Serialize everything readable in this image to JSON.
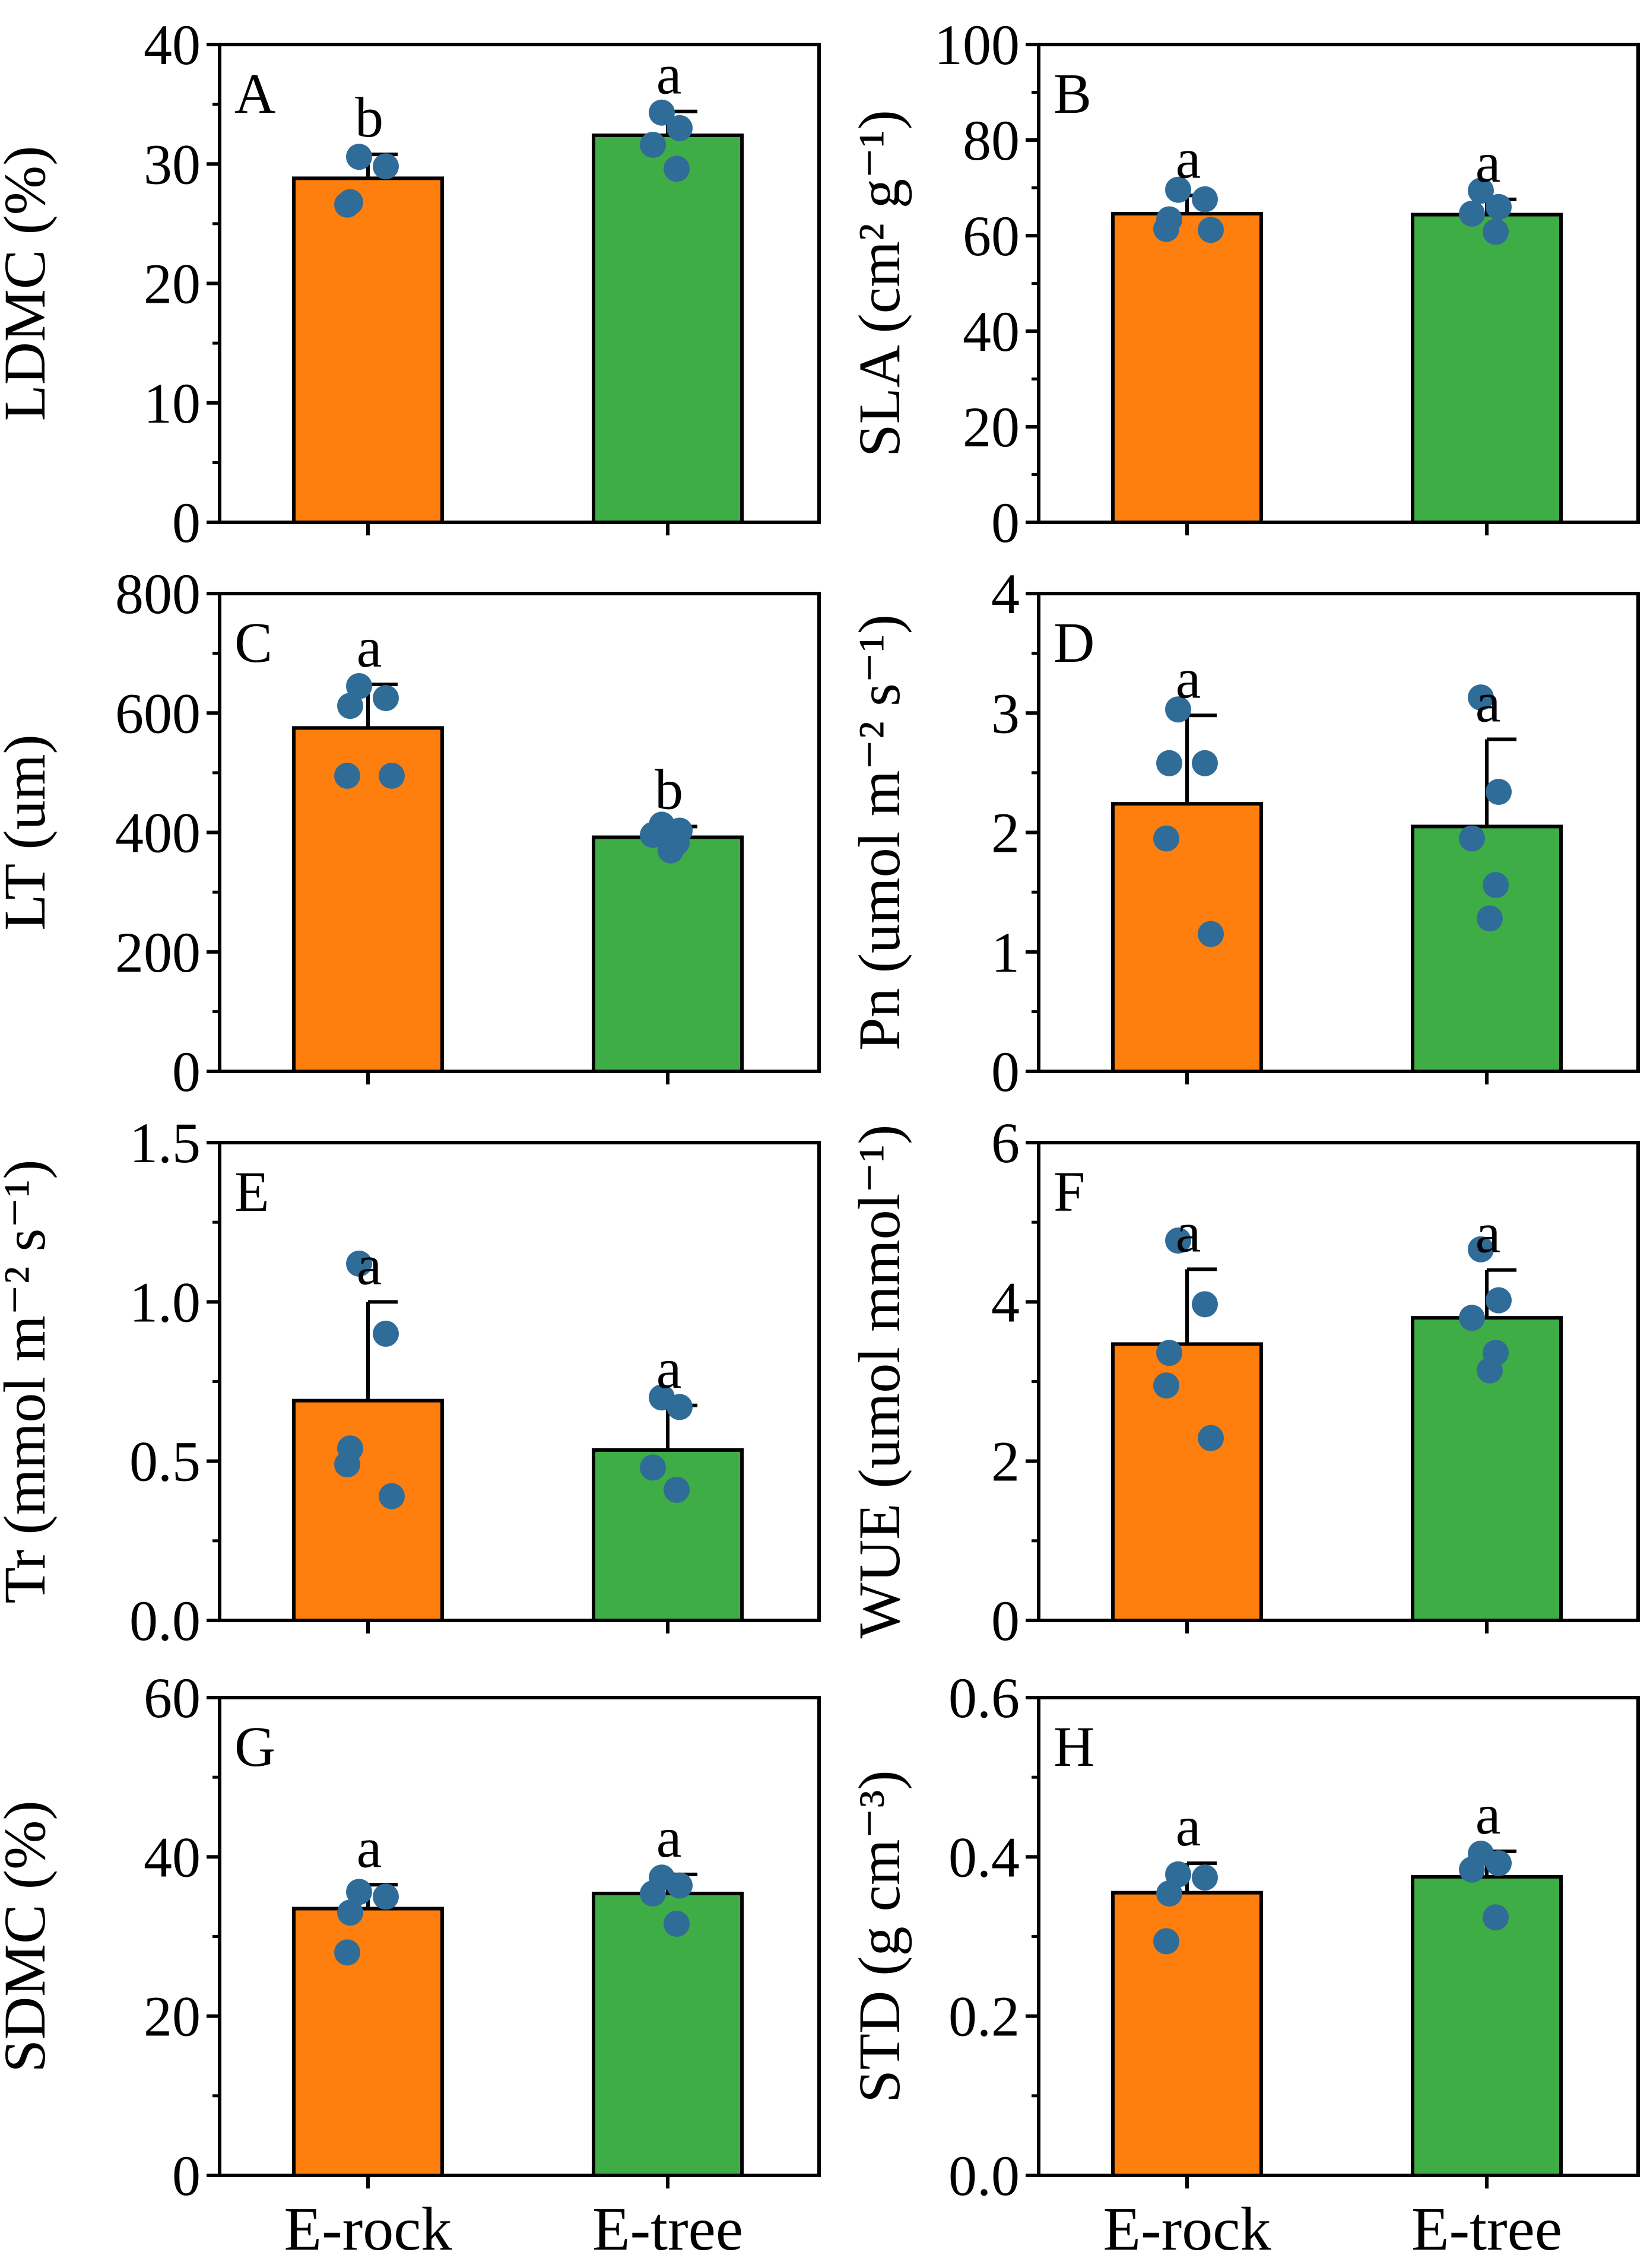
{
  "colors": {
    "E-rock": "#ff7f0e",
    "E-tree": "#3fad46",
    "points": "#2f6c98",
    "axis": "#000000"
  },
  "chart_data": [
    {
      "type": "bar",
      "panel": "A",
      "categories": [
        "E-rock",
        "E-tree"
      ],
      "ylabel": "LDMC (%)",
      "ylim": [
        0,
        40
      ],
      "yticks": [
        "0",
        "10",
        "20",
        "30",
        "40"
      ],
      "yticks_values": [
        0,
        10,
        20,
        30,
        40
      ],
      "minor_ticks": [
        5,
        15,
        25,
        35
      ],
      "values": [
        28.8,
        32.4
      ],
      "errors": [
        2.0,
        2.0
      ],
      "letters": [
        "b",
        "a"
      ],
      "points": [
        [
          30.6,
          29.8,
          26.8,
          26.6
        ],
        [
          34.3,
          33.0,
          31.6,
          29.6
        ]
      ]
    },
    {
      "type": "bar",
      "panel": "B",
      "categories": [
        "E-rock",
        "E-tree"
      ],
      "ylabel": "SLA (cm² g⁻¹)",
      "ylim": [
        0,
        100
      ],
      "yticks": [
        "0",
        "20",
        "40",
        "60",
        "80",
        "100"
      ],
      "yticks_values": [
        0,
        20,
        40,
        60,
        80,
        100
      ],
      "minor_ticks": [
        10,
        30,
        50,
        70,
        90
      ],
      "values": [
        64.6,
        64.4
      ],
      "errors": [
        3.8,
        3.2
      ],
      "letters": [
        "a",
        "a"
      ],
      "points": [
        [
          69.6,
          67.6,
          63.4,
          61.4,
          61.2
        ],
        [
          69.4,
          66.0,
          64.6,
          60.8
        ]
      ]
    },
    {
      "type": "bar",
      "panel": "C",
      "categories": [
        "E-rock",
        "E-tree"
      ],
      "ylabel": "LT (um)",
      "ylim": [
        0,
        800
      ],
      "yticks": [
        "0",
        "200",
        "400",
        "600",
        "800"
      ],
      "yticks_values": [
        0,
        200,
        400,
        600,
        800
      ],
      "minor_ticks": [
        100,
        300,
        500,
        700
      ],
      "values": [
        575,
        392
      ],
      "errors": [
        73,
        18
      ],
      "letters": [
        "a",
        "b"
      ],
      "points": [
        [
          645,
          625,
          612,
          495,
          495
        ],
        [
          413,
          403,
          396,
          383,
          370
        ]
      ]
    },
    {
      "type": "bar",
      "panel": "D",
      "categories": [
        "E-rock",
        "E-tree"
      ],
      "ylabel": "Pn (umol m⁻² s⁻¹)",
      "ylim": [
        0,
        4
      ],
      "yticks": [
        "0",
        "1",
        "2",
        "3",
        "4"
      ],
      "yticks_values": [
        0,
        1,
        2,
        3,
        4
      ],
      "minor_ticks": [
        0.5,
        1.5,
        2.5,
        3.5
      ],
      "values": [
        2.24,
        2.05
      ],
      "errors": [
        0.74,
        0.73
      ],
      "letters": [
        "a",
        "a"
      ],
      "points": [
        [
          3.03,
          2.58,
          2.58,
          1.95,
          1.15
        ],
        [
          3.13,
          2.34,
          1.95,
          1.56,
          1.28
        ]
      ]
    },
    {
      "type": "bar",
      "panel": "E",
      "categories": [
        "E-rock",
        "E-tree"
      ],
      "ylabel": "Tr (mmol m⁻² s⁻¹)",
      "ylim": [
        0,
        1.5
      ],
      "yticks": [
        "0.0",
        "0.5",
        "1.0",
        "1.5"
      ],
      "yticks_values": [
        0,
        0.5,
        1.0,
        1.5
      ],
      "minor_ticks": [
        0.25,
        0.75,
        1.25
      ],
      "values": [
        0.69,
        0.535
      ],
      "errors": [
        0.31,
        0.14
      ],
      "letters": [
        "a",
        "a"
      ],
      "points": [
        [
          1.12,
          0.9,
          0.54,
          0.49,
          0.39
        ],
        [
          0.7,
          0.67,
          0.48,
          0.41
        ]
      ]
    },
    {
      "type": "bar",
      "panel": "F",
      "categories": [
        "E-rock",
        "E-tree"
      ],
      "ylabel": "WUE (umol mmol⁻¹)",
      "ylim": [
        0,
        6
      ],
      "yticks": [
        "0",
        "2",
        "4",
        "6"
      ],
      "yticks_values": [
        0,
        2,
        4,
        6
      ],
      "minor_ticks": [
        1,
        3,
        5
      ],
      "values": [
        3.47,
        3.8
      ],
      "errors": [
        0.94,
        0.6
      ],
      "letters": [
        "a",
        "a"
      ],
      "points": [
        [
          4.77,
          3.97,
          3.36,
          2.95,
          2.29
        ],
        [
          4.66,
          4.02,
          3.8,
          3.36,
          3.14
        ]
      ]
    },
    {
      "type": "bar",
      "panel": "G",
      "categories": [
        "E-rock",
        "E-tree"
      ],
      "ylabel": "SDMC (%)",
      "ylim": [
        0,
        60
      ],
      "yticks": [
        "0",
        "20",
        "40",
        "60"
      ],
      "yticks_values": [
        0,
        20,
        40,
        60
      ],
      "minor_ticks": [
        10,
        30,
        50
      ],
      "values": [
        33.5,
        35.4
      ],
      "errors": [
        3.0,
        2.4
      ],
      "letters": [
        "a",
        "a"
      ],
      "points": [
        [
          35.6,
          35.0,
          33.0,
          28.0
        ],
        [
          37.4,
          36.4,
          35.4,
          31.6
        ]
      ]
    },
    {
      "type": "bar",
      "panel": "H",
      "categories": [
        "E-rock",
        "E-tree"
      ],
      "ylabel": "STD (g cm⁻³)",
      "ylim": [
        0,
        0.6
      ],
      "yticks": [
        "0.0",
        "0.2",
        "0.4",
        "0.6"
      ],
      "yticks_values": [
        0,
        0.2,
        0.4,
        0.6
      ],
      "minor_ticks": [
        0.1,
        0.3,
        0.5
      ],
      "values": [
        0.355,
        0.375
      ],
      "errors": [
        0.037,
        0.032
      ],
      "letters": [
        "a",
        "a"
      ],
      "points": [
        [
          0.378,
          0.374,
          0.354,
          0.294
        ],
        [
          0.404,
          0.392,
          0.384,
          0.324
        ]
      ]
    }
  ]
}
